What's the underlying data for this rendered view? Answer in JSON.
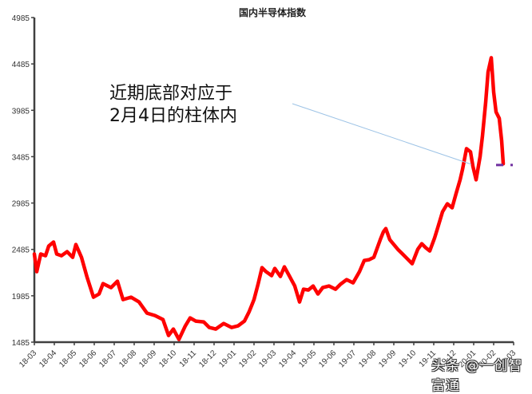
{
  "chart_data": {
    "type": "line",
    "title": "国内半导体指数",
    "xlabel": "",
    "ylabel": "",
    "ylim": [
      1485,
      4985
    ],
    "yticks": [
      1485,
      1985,
      2485,
      2985,
      3485,
      3985,
      4485,
      4985
    ],
    "xticks": [
      "18-03",
      "18-04",
      "18-05",
      "18-06",
      "18-07",
      "18-08",
      "18-09",
      "18-10",
      "18-11",
      "18-12",
      "19-01",
      "19-02",
      "19-03",
      "19-04",
      "19-05",
      "19-06",
      "19-07",
      "19-08",
      "19-09",
      "19-10",
      "19-11",
      "19-12",
      "20-01",
      "20-02",
      "20-03"
    ],
    "grid": false,
    "legend": null,
    "series": [
      {
        "name": "国内半导体指数",
        "color": "#ff0000",
        "x_tick_index": [
          0,
          0.12,
          0.32,
          0.56,
          0.72,
          0.96,
          1.12,
          1.36,
          1.64,
          1.92,
          2.08,
          2.36,
          2.64,
          2.96,
          3.24,
          3.44,
          3.84,
          4.16,
          4.44,
          4.84,
          5.24,
          5.64,
          6.04,
          6.44,
          6.72,
          6.96,
          7.24,
          7.56,
          7.8,
          8.08,
          8.48,
          8.76,
          9.08,
          9.48,
          9.88,
          10.2,
          10.52,
          10.76,
          11,
          11.2,
          11.4,
          11.6,
          11.88,
          12.04,
          12.32,
          12.52,
          12.76,
          13.04,
          13.28,
          13.48,
          13.72,
          13.96,
          14.2,
          14.44,
          14.76,
          15.08,
          15.32,
          15.64,
          15.96,
          16.28,
          16.52,
          16.76,
          17,
          17.32,
          17.48,
          17.6,
          17.8,
          18.2,
          18.44,
          18.68,
          18.92,
          19.2,
          19.4,
          19.6,
          19.8,
          20.04,
          20.2,
          20.44,
          20.68,
          20.92,
          21.12,
          21.32,
          21.44,
          21.64,
          21.84,
          21.96,
          22.12,
          22.32,
          22.44,
          22.6,
          22.72,
          22.88,
          23,
          23.12,
          23.28,
          23.4,
          23.48
        ],
        "values": [
          2435,
          2245,
          2435,
          2417,
          2521,
          2564,
          2435,
          2417,
          2460,
          2400,
          2538,
          2400,
          2185,
          1970,
          2004,
          2116,
          2073,
          2142,
          1944,
          1970,
          1918,
          1798,
          1772,
          1729,
          1557,
          1626,
          1514,
          1660,
          1746,
          1712,
          1703,
          1643,
          1626,
          1686,
          1643,
          1660,
          1712,
          1815,
          1944,
          2108,
          2288,
          2245,
          2202,
          2280,
          2194,
          2297,
          2202,
          2090,
          1918,
          2056,
          2047,
          2090,
          2004,
          2073,
          2090,
          2056,
          2108,
          2159,
          2125,
          2245,
          2366,
          2374,
          2400,
          2589,
          2675,
          2710,
          2589,
          2486,
          2435,
          2383,
          2331,
          2486,
          2546,
          2503,
          2469,
          2607,
          2719,
          2891,
          2977,
          2934,
          3089,
          3236,
          3348,
          3571,
          3537,
          3382,
          3236,
          3485,
          3709,
          4070,
          4397,
          4552,
          4182,
          3967,
          3898,
          3657,
          3408,
          3468
        ]
      }
    ],
    "reference_line": {
      "style": "dashed",
      "color": "#7030a0",
      "value": 3395,
      "x_from": "20-02",
      "x_to": "20-03"
    },
    "annotation": {
      "lines": [
        "近期底部对应于",
        "2月4日的柱体内"
      ],
      "leader_line_color": "#9dc3e6"
    }
  },
  "watermark": "头条 @一创智富通"
}
